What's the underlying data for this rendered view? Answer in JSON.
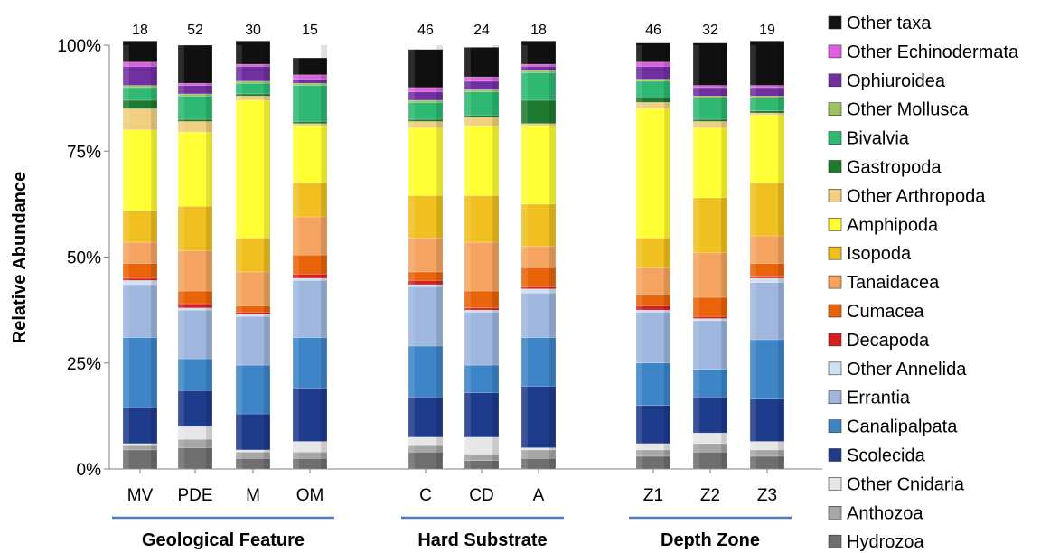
{
  "chart_data": {
    "type": "bar",
    "stacked": true,
    "ylabel": "Relative Abundance",
    "ylim": [
      0,
      100
    ],
    "yticks": [
      "0%",
      "25%",
      "50%",
      "75%",
      "100%"
    ],
    "categories": [
      "MV",
      "PDE",
      "M",
      "OM",
      "C",
      "CD",
      "A",
      "Z1",
      "Z2",
      "Z3"
    ],
    "counts": [
      "18",
      "52",
      "30",
      "15",
      "46",
      "24",
      "18",
      "46",
      "32",
      "19"
    ],
    "groups": [
      {
        "label": "Geological Feature",
        "categories": [
          "MV",
          "PDE",
          "M",
          "OM"
        ]
      },
      {
        "label": "Hard Substrate",
        "categories": [
          "C",
          "CD",
          "A"
        ]
      },
      {
        "label": "Depth Zone",
        "categories": [
          "Z1",
          "Z2",
          "Z3"
        ]
      }
    ],
    "series": [
      {
        "name": "Hydrozoa",
        "color": "#6e6e6e",
        "values": [
          4.5,
          5.0,
          2.5,
          2.5,
          4.0,
          2.0,
          2.5,
          3.0,
          4.0,
          3.0
        ]
      },
      {
        "name": "Anthozoa",
        "color": "#a6a6a6",
        "values": [
          1.0,
          2.0,
          1.5,
          1.5,
          1.5,
          1.5,
          2.0,
          1.5,
          2.0,
          1.5
        ]
      },
      {
        "name": "Other Cnidaria",
        "color": "#e6e6e6",
        "values": [
          0.5,
          3.0,
          0.5,
          2.5,
          2.0,
          4.0,
          0.5,
          1.5,
          2.5,
          2.0
        ]
      },
      {
        "name": "Scolecida",
        "color": "#1f3b8c",
        "values": [
          8.5,
          8.5,
          8.5,
          12.5,
          9.5,
          10.5,
          14.5,
          9.0,
          8.5,
          10.0
        ]
      },
      {
        "name": "Canalipalpata",
        "color": "#3d85c6",
        "values": [
          16.5,
          7.5,
          11.5,
          12.0,
          12.0,
          6.5,
          11.5,
          10.0,
          6.5,
          14.0
        ]
      },
      {
        "name": "Errantia",
        "color": "#9fb6df",
        "values": [
          12.5,
          11.5,
          11.5,
          13.5,
          14.0,
          12.5,
          10.5,
          12.0,
          11.5,
          13.5
        ]
      },
      {
        "name": "Other Annelida",
        "color": "#cfe0f1",
        "values": [
          1.0,
          0.5,
          0.5,
          0.5,
          0.5,
          0.5,
          1.0,
          0.5,
          0.5,
          1.0
        ]
      },
      {
        "name": "Decapoda",
        "color": "#d62020",
        "values": [
          0.5,
          1.0,
          0.5,
          1.0,
          1.0,
          0.5,
          0.5,
          1.0,
          0.5,
          0.5
        ]
      },
      {
        "name": "Cumacea",
        "color": "#e8630a",
        "values": [
          3.5,
          3.0,
          1.5,
          4.5,
          2.0,
          4.0,
          4.5,
          2.5,
          4.5,
          3.0
        ]
      },
      {
        "name": "Tanaidacea",
        "color": "#f4a460",
        "values": [
          5.0,
          9.5,
          8.0,
          9.0,
          8.0,
          11.5,
          5.0,
          6.5,
          10.5,
          6.5
        ]
      },
      {
        "name": "Isopoda",
        "color": "#f0c020",
        "values": [
          7.5,
          10.5,
          8.0,
          8.0,
          10.0,
          11.0,
          10.0,
          7.0,
          13.0,
          12.5
        ]
      },
      {
        "name": "Amphipoda",
        "color": "#ffff33",
        "values": [
          19.0,
          17.5,
          32.5,
          13.5,
          16.0,
          16.5,
          18.5,
          30.5,
          16.5,
          16.0
        ]
      },
      {
        "name": "Other Arthropoda",
        "color": "#f0d080",
        "values": [
          5.0,
          2.5,
          1.0,
          0.5,
          1.5,
          2.0,
          0.5,
          1.5,
          1.5,
          0.5
        ]
      },
      {
        "name": "Gastropoda",
        "color": "#1e7a2e",
        "values": [
          2.0,
          0.5,
          0.5,
          0.5,
          0.5,
          0.5,
          5.5,
          1.0,
          0.5,
          0.5
        ]
      },
      {
        "name": "Bivalvia",
        "color": "#2eb872",
        "values": [
          3.0,
          5.5,
          2.5,
          8.5,
          4.0,
          5.5,
          6.5,
          4.0,
          5.0,
          3.0
        ]
      },
      {
        "name": "Other Mollusca",
        "color": "#9dc45f",
        "values": [
          0.5,
          0.5,
          0.5,
          0.5,
          0.5,
          0.5,
          0.5,
          0.5,
          0.5,
          0.5
        ]
      },
      {
        "name": "Ophiuroidea",
        "color": "#7030a0",
        "values": [
          4.5,
          2.0,
          3.5,
          1.0,
          2.0,
          2.0,
          1.0,
          3.0,
          2.0,
          2.0
        ]
      },
      {
        "name": "Other Echinodermata",
        "color": "#e05ee0",
        "values": [
          1.0,
          0.5,
          0.5,
          1.0,
          1.0,
          1.0,
          0.5,
          1.0,
          0.5,
          0.5
        ]
      },
      {
        "name": "Other taxa",
        "color": "#111111",
        "values": [
          5.0,
          9.0,
          5.5,
          4.0,
          9.0,
          7.0,
          5.5,
          4.5,
          10.0,
          10.5
        ]
      }
    ],
    "legend_order": [
      "Other taxa",
      "Other Echinodermata",
      "Ophiuroidea",
      "Other Mollusca",
      "Bivalvia",
      "Gastropoda",
      "Other Arthropoda",
      "Amphipoda",
      "Isopoda",
      "Tanaidacea",
      "Cumacea",
      "Decapoda",
      "Other Annelida",
      "Errantia",
      "Canalipalpata",
      "Scolecida",
      "Other Cnidaria",
      "Anthozoa",
      "Hydrozoa"
    ],
    "legend_position": "right",
    "grid": false
  }
}
